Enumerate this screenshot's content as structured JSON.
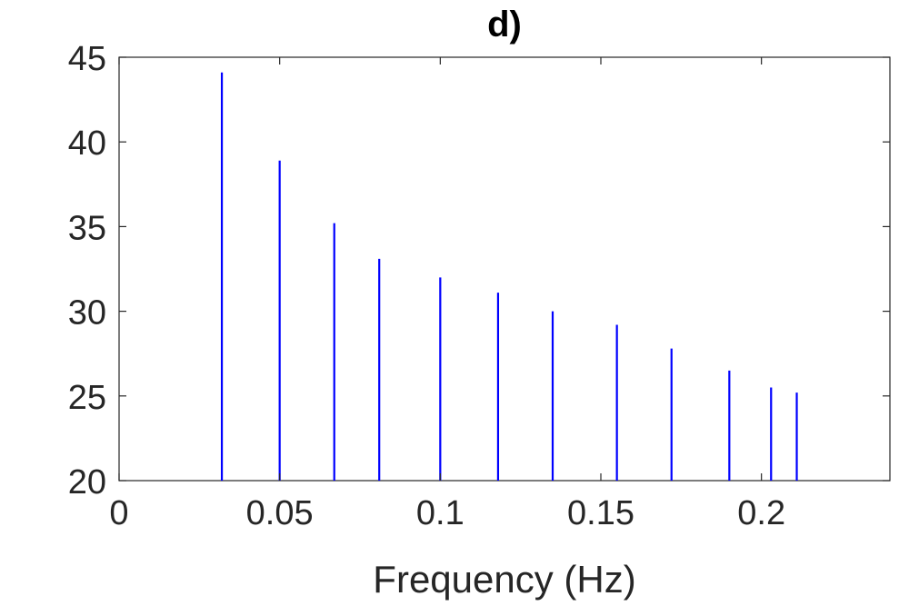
{
  "chart_data": {
    "type": "stem",
    "title": "d)",
    "xlabel": "Frequency (Hz)",
    "ylabel": "",
    "xlim": [
      0,
      0.24
    ],
    "ylim": [
      20,
      45
    ],
    "xticks": [
      "0",
      "0.05",
      "0.1",
      "0.15",
      "0.2"
    ],
    "yticks": [
      "20",
      "25",
      "30",
      "35",
      "40",
      "45"
    ],
    "grid": false,
    "color": "#0000ff",
    "x": [
      0.032,
      0.05,
      0.067,
      0.081,
      0.1,
      0.118,
      0.135,
      0.155,
      0.172,
      0.19,
      0.203,
      0.211
    ],
    "y": [
      44.1,
      38.9,
      35.2,
      33.1,
      32.0,
      31.1,
      30.0,
      29.2,
      27.8,
      26.5,
      25.5,
      25.2
    ]
  }
}
